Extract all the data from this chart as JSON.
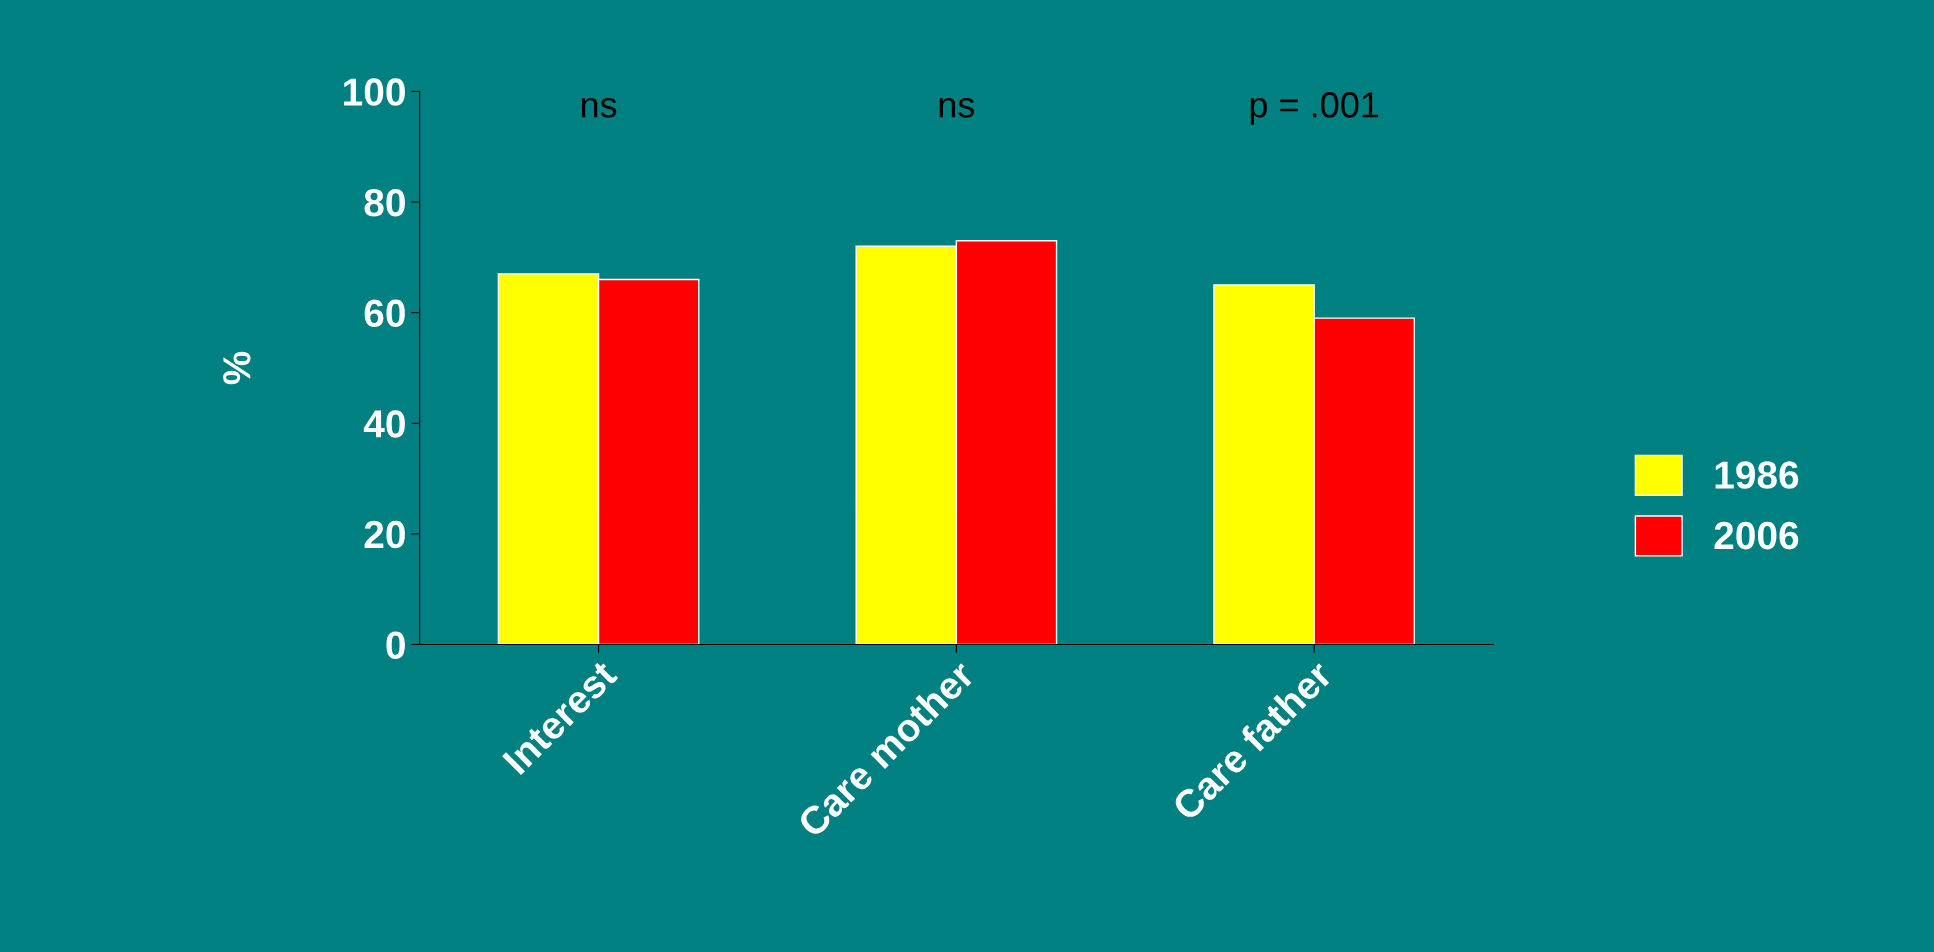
{
  "chart_data": {
    "type": "bar",
    "ylabel": "%",
    "categories": [
      "Interest",
      "Care mother",
      "Care father"
    ],
    "series": [
      {
        "name": "1986",
        "color": "#ffff00",
        "values": [
          67,
          72,
          65
        ]
      },
      {
        "name": "2006",
        "color": "#ff0000",
        "values": [
          66,
          73,
          59
        ]
      }
    ],
    "ylim": [
      0,
      100
    ],
    "yticks": [
      0,
      20,
      40,
      60,
      80,
      100
    ],
    "annotations": [
      "ns",
      "ns",
      "p = .001"
    ],
    "grid": false,
    "legend": "right"
  }
}
